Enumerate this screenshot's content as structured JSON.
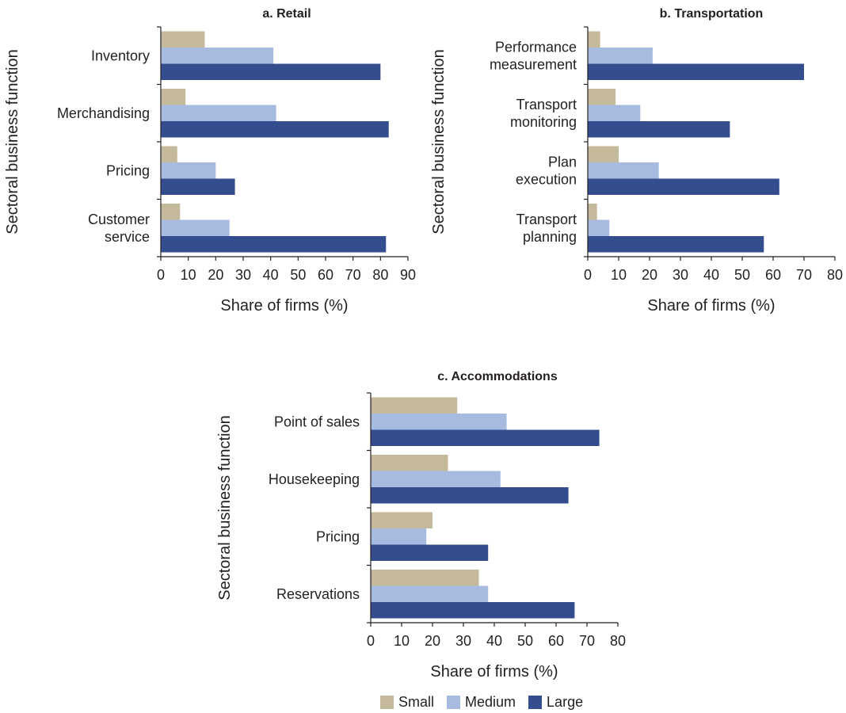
{
  "colors": {
    "Small": "#c4b99b",
    "Medium": "#a6bbdf",
    "Large": "#344d8f"
  },
  "legend": {
    "items": [
      {
        "name": "Small"
      },
      {
        "name": "Medium"
      },
      {
        "name": "Large"
      }
    ]
  },
  "chart_data": [
    {
      "type": "bar",
      "orientation": "horizontal",
      "title": "a. Retail",
      "xlabel": "Share of firms (%)",
      "ylabel": "Sectoral business function",
      "xlim": [
        0,
        90
      ],
      "xticks": [
        0,
        10,
        20,
        30,
        40,
        50,
        60,
        70,
        80,
        90
      ],
      "categories": [
        [
          "Inventory"
        ],
        [
          "Merchandising"
        ],
        [
          "Pricing"
        ],
        [
          "Customer",
          "service"
        ]
      ],
      "series": [
        {
          "name": "Small",
          "values": [
            16,
            9,
            6,
            7
          ]
        },
        {
          "name": "Medium",
          "values": [
            41,
            42,
            20,
            25
          ]
        },
        {
          "name": "Large",
          "values": [
            80,
            83,
            27,
            82
          ]
        }
      ]
    },
    {
      "type": "bar",
      "orientation": "horizontal",
      "title": "b. Transportation",
      "xlabel": "Share of firms (%)",
      "ylabel": "Sectoral business function",
      "xlim": [
        0,
        80
      ],
      "xticks": [
        0,
        10,
        20,
        30,
        40,
        50,
        60,
        70,
        80
      ],
      "categories": [
        [
          "Performance",
          "measurement"
        ],
        [
          "Transport",
          "monitoring"
        ],
        [
          "Plan",
          "execution"
        ],
        [
          "Transport",
          "planning"
        ]
      ],
      "series": [
        {
          "name": "Small",
          "values": [
            4,
            9,
            10,
            3
          ]
        },
        {
          "name": "Medium",
          "values": [
            21,
            17,
            23,
            7
          ]
        },
        {
          "name": "Large",
          "values": [
            70,
            46,
            62,
            57
          ]
        }
      ]
    },
    {
      "type": "bar",
      "orientation": "horizontal",
      "title": "c. Accommodations",
      "xlabel": "Share of firms (%)",
      "ylabel": "Sectoral business function",
      "xlim": [
        0,
        80
      ],
      "xticks": [
        0,
        10,
        20,
        30,
        40,
        50,
        60,
        70,
        80
      ],
      "categories": [
        [
          "Point of sales"
        ],
        [
          "Housekeeping"
        ],
        [
          "Pricing"
        ],
        [
          "Reservations"
        ]
      ],
      "series": [
        {
          "name": "Small",
          "values": [
            28,
            25,
            20,
            35
          ]
        },
        {
          "name": "Medium",
          "values": [
            44,
            42,
            18,
            38
          ]
        },
        {
          "name": "Large",
          "values": [
            74,
            64,
            38,
            66
          ]
        }
      ]
    }
  ]
}
